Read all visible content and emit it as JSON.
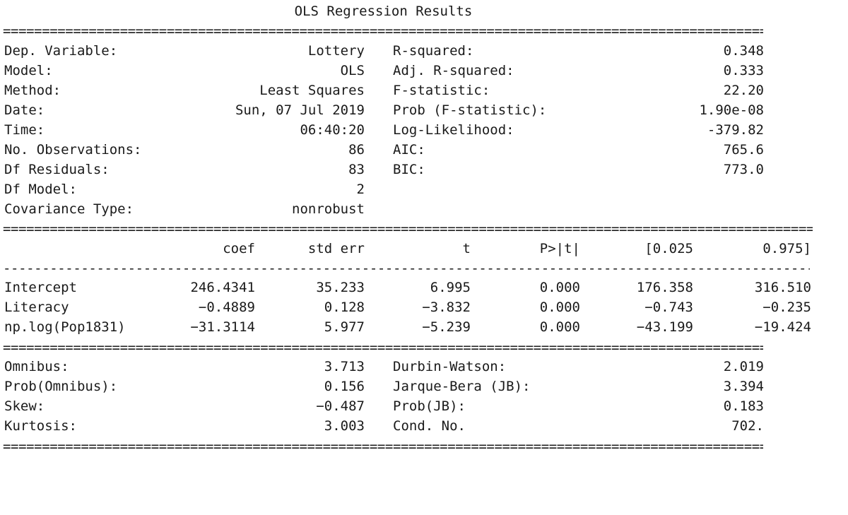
{
  "title": "OLS Regression Results",
  "summary_left": [
    {
      "label": "Dep. Variable:",
      "value": "Lottery"
    },
    {
      "label": "Model:",
      "value": "OLS"
    },
    {
      "label": "Method:",
      "value": "Least Squares"
    },
    {
      "label": "Date:",
      "value": "Sun, 07 Jul 2019"
    },
    {
      "label": "Time:",
      "value": "06:40:20"
    },
    {
      "label": "No. Observations:",
      "value": "86"
    },
    {
      "label": "Df Residuals:",
      "value": "83"
    },
    {
      "label": "Df Model:",
      "value": "2"
    },
    {
      "label": "Covariance Type:",
      "value": "nonrobust"
    }
  ],
  "summary_right": [
    {
      "label": "R-squared:",
      "value": "0.348"
    },
    {
      "label": "Adj. R-squared:",
      "value": "0.333"
    },
    {
      "label": "F-statistic:",
      "value": "22.20"
    },
    {
      "label": "Prob (F-statistic):",
      "value": "1.90e-08"
    },
    {
      "label": "Log-Likelihood:",
      "value": "-379.82"
    },
    {
      "label": "AIC:",
      "value": "765.6"
    },
    {
      "label": "BIC:",
      "value": "773.0"
    }
  ],
  "coef_headers": [
    "",
    "coef",
    "std err",
    "t",
    "P>|t|",
    "[0.025",
    "0.975]"
  ],
  "coef_rows": [
    [
      "Intercept",
      "246.4341",
      "35.233",
      "6.995",
      "0.000",
      "176.358",
      "316.510"
    ],
    [
      "Literacy",
      "−0.4889",
      "0.128",
      "−3.832",
      "0.000",
      "−0.743",
      "−0.235"
    ],
    [
      "np.log(Pop1831)",
      "−31.3114",
      "5.977",
      "−5.239",
      "0.000",
      "−43.199",
      "−19.424"
    ]
  ],
  "diag_left": [
    {
      "label": "Omnibus:",
      "value": "3.713"
    },
    {
      "label": "Prob(Omnibus):",
      "value": "0.156"
    },
    {
      "label": "Skew:",
      "value": "−0.487"
    },
    {
      "label": "Kurtosis:",
      "value": "3.003"
    }
  ],
  "diag_right": [
    {
      "label": "Durbin-Watson:",
      "value": "2.019"
    },
    {
      "label": "Jarque-Bera (JB):",
      "value": "3.394"
    },
    {
      "label": "Prob(JB):",
      "value": "0.183"
    },
    {
      "label": "Cond. No.",
      "value": "702."
    }
  ]
}
